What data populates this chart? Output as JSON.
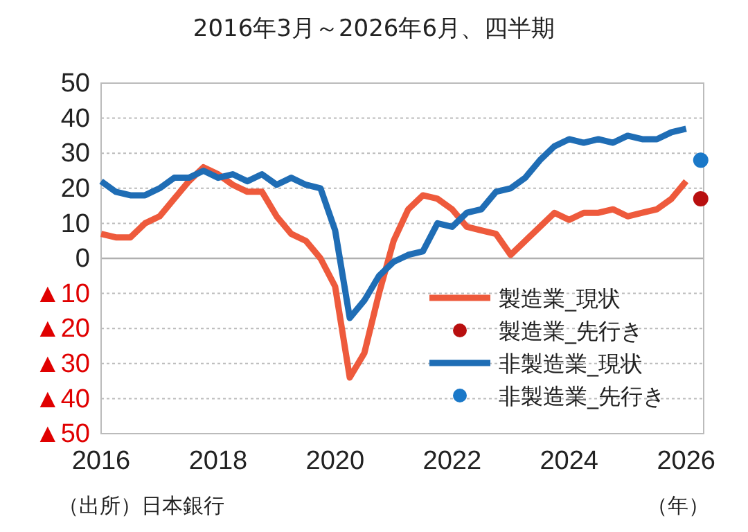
{
  "chart_data": {
    "type": "line",
    "title": "2016年3月～2026年6月、四半期",
    "x": [
      2016,
      2016.25,
      2016.5,
      2016.75,
      2017,
      2017.25,
      2017.5,
      2017.75,
      2018,
      2018.25,
      2018.5,
      2018.75,
      2019,
      2019.25,
      2019.5,
      2019.75,
      2020,
      2020.25,
      2020.5,
      2020.75,
      2021,
      2021.25,
      2021.5,
      2021.75,
      2022,
      2022.25,
      2022.5,
      2022.75,
      2023,
      2023.25,
      2023.5,
      2023.75,
      2024,
      2024.25,
      2024.5,
      2024.75,
      2025,
      2025.25,
      2025.5,
      2025.75,
      2026
    ],
    "series": [
      {
        "name": "製造業_現状",
        "color": "#ee5a3c",
        "values": [
          7,
          6,
          6,
          10,
          12,
          17,
          22,
          26,
          24,
          21,
          19,
          19,
          12,
          7,
          5,
          0,
          -8,
          -34,
          -27,
          -10,
          5,
          14,
          18,
          17,
          14,
          9,
          8,
          7,
          1,
          5,
          9,
          13,
          11,
          13,
          13,
          14,
          12,
          13,
          14,
          17,
          22
        ]
      },
      {
        "name": "製造業_先行き",
        "type": "scatter",
        "marker": "circle",
        "color": "#b80f0f",
        "x": [
          2026.25
        ],
        "values": [
          17
        ]
      },
      {
        "name": "非製造業_現状",
        "color": "#1f6db5",
        "values": [
          22,
          19,
          18,
          18,
          20,
          23,
          23,
          25,
          23,
          24,
          22,
          24,
          21,
          23,
          21,
          20,
          8,
          -17,
          -12,
          -5,
          -1,
          1,
          2,
          10,
          9,
          13,
          14,
          19,
          20,
          23,
          28,
          32,
          34,
          33,
          34,
          33,
          35,
          34,
          34,
          36,
          37
        ]
      },
      {
        "name": "非製造業_先行き",
        "type": "scatter",
        "marker": "circle",
        "color": "#1a78c8",
        "x": [
          2026.25
        ],
        "values": [
          28
        ]
      }
    ],
    "xlim": [
      2016,
      2026.3
    ],
    "xticks": [
      2016,
      2018,
      2020,
      2022,
      2024,
      2026
    ],
    "ylim": [
      -50,
      50
    ],
    "yticks": [
      {
        "value": -50,
        "label": "▲50"
      },
      {
        "value": -40,
        "label": "▲40"
      },
      {
        "value": -30,
        "label": "▲30"
      },
      {
        "value": -20,
        "label": "▲20"
      },
      {
        "value": -10,
        "label": "▲10"
      },
      0,
      10,
      20,
      30,
      40,
      50
    ],
    "ref_lines": [
      {
        "axis": "y",
        "value": 0,
        "color": "#b0b0b0",
        "line_style": "solid"
      }
    ],
    "grid": "y",
    "legend": "bottom right",
    "line_style": "solid",
    "annotations": [
      "（出所）日本銀行",
      "（年）"
    ]
  }
}
